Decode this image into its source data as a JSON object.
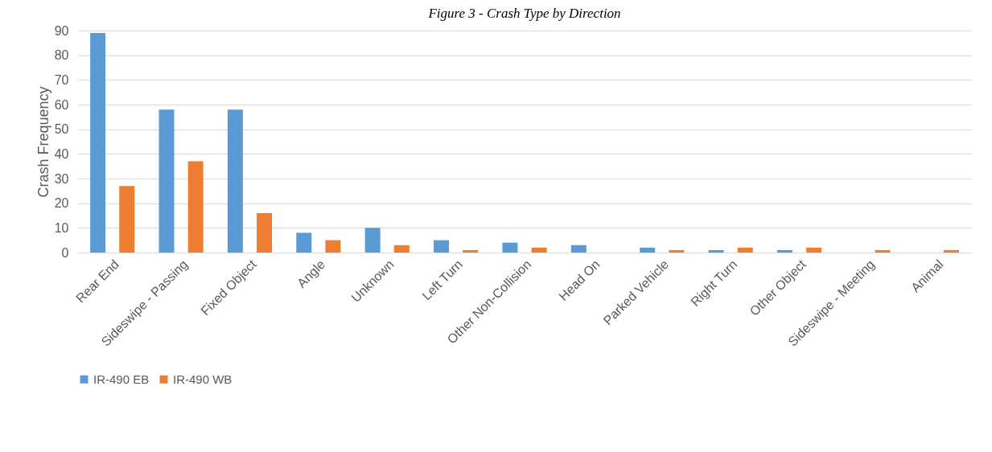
{
  "chart_data": {
    "type": "bar",
    "title": "Figure 3 - Crash Type by Direction",
    "ylabel": "Crash Frequency",
    "categories": [
      "Rear End",
      "Sideswipe - Passing",
      "Fixed Object",
      "Angle",
      "Unknown",
      "Left Turn",
      "Other Non-Collision",
      "Head On",
      "Parked Vehicle",
      "Right Turn",
      "Other Object",
      "Sideswipe - Meeting",
      "Animal"
    ],
    "series": [
      {
        "name": "IR-490 EB",
        "color": "#5b9bd5",
        "values": [
          89,
          58,
          58,
          8,
          10,
          5,
          4,
          3,
          2,
          1,
          1,
          0,
          0
        ]
      },
      {
        "name": "IR-490 WB",
        "color": "#ed7d31",
        "values": [
          27,
          37,
          16,
          5,
          3,
          1,
          2,
          0,
          1,
          2,
          2,
          1,
          1
        ]
      }
    ],
    "ylim": [
      0,
      90
    ],
    "yticks": [
      0,
      10,
      20,
      30,
      40,
      50,
      60,
      70,
      80,
      90
    ],
    "grid": "y",
    "legend": "bottom"
  }
}
